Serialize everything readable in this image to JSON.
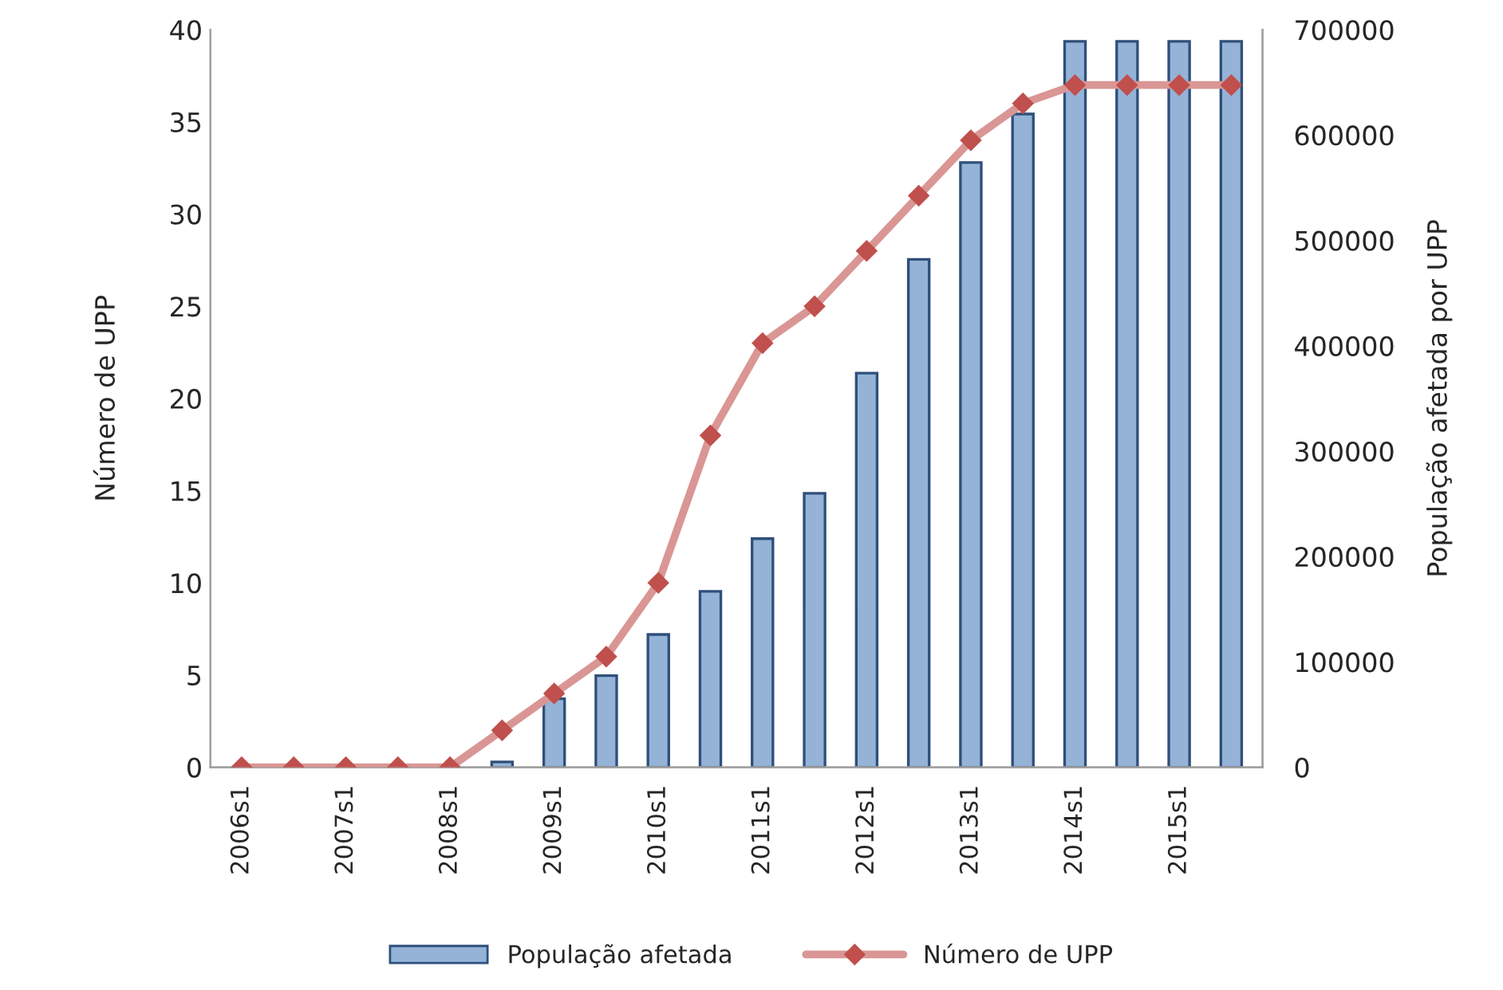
{
  "chart_data": {
    "type": "bar",
    "categories": [
      "2006s1",
      null,
      "2007s1",
      null,
      "2008s1",
      null,
      "2009s1",
      null,
      "2010s1",
      null,
      "2011s1",
      null,
      "2012s1",
      null,
      "2013s1",
      null,
      "2014s1",
      null,
      "2015s1",
      null
    ],
    "ylabel": "Número de UPP",
    "y2label": "População afetada por UPP",
    "ylim": [
      0,
      40
    ],
    "yticks": [
      0,
      5,
      10,
      15,
      20,
      25,
      30,
      35,
      40
    ],
    "y2lim": [
      0,
      700000
    ],
    "y2ticks": [
      0,
      100000,
      200000,
      300000,
      400000,
      500000,
      600000,
      700000
    ],
    "series": [
      {
        "name": "População afetada",
        "type": "bar",
        "axis": "y2",
        "color": "#95b3d7",
        "values": [
          0,
          0,
          0,
          0,
          0,
          5000,
          65000,
          87000,
          126000,
          167000,
          217000,
          260000,
          374000,
          482000,
          574000,
          620000,
          689000,
          689000,
          689000,
          689000
        ]
      },
      {
        "name": "Número de UPP",
        "type": "line",
        "axis": "y",
        "color": "#c0504d",
        "marker": "diamond",
        "values": [
          0,
          0,
          0,
          0,
          0,
          2,
          4,
          6,
          10,
          18,
          23,
          25,
          28,
          31,
          34,
          36,
          37,
          37,
          37,
          37
        ]
      }
    ],
    "legend": "bottom",
    "grid": false
  }
}
